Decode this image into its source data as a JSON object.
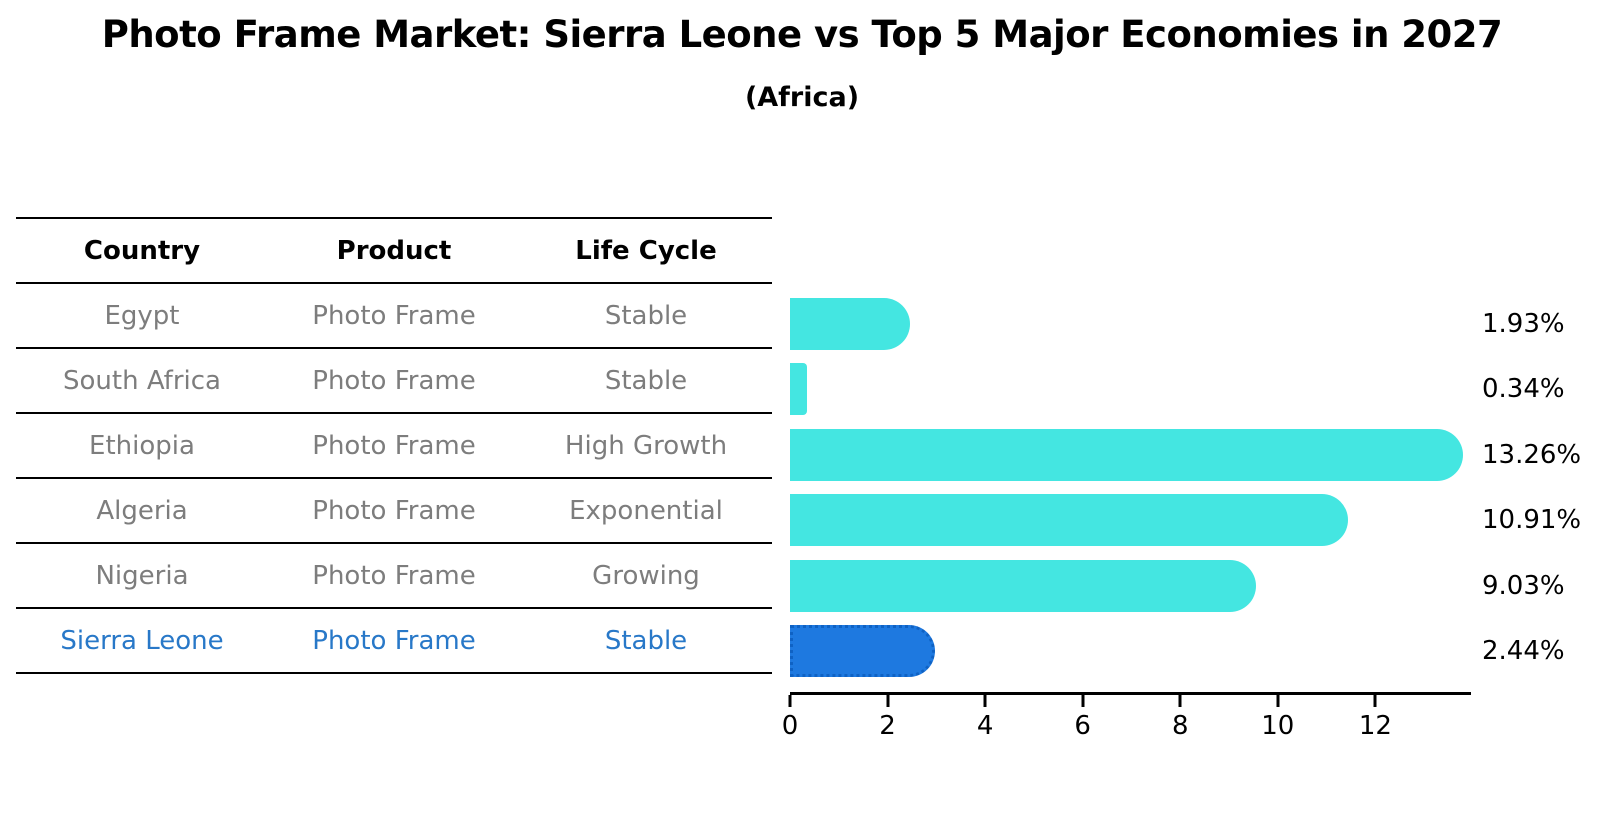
{
  "title": "Photo Frame Market: Sierra Leone vs Top 5 Major Economies in 2027",
  "subtitle": "(Africa)",
  "table": {
    "headers": [
      "Country",
      "Product",
      "Life Cycle"
    ],
    "rows": [
      {
        "country": "Egypt",
        "product": "Photo Frame",
        "life_cycle": "Stable",
        "highlight": false
      },
      {
        "country": "South Africa",
        "product": "Photo Frame",
        "life_cycle": "Stable",
        "highlight": false
      },
      {
        "country": "Ethiopia",
        "product": "Photo Frame",
        "life_cycle": "High Growth",
        "highlight": false
      },
      {
        "country": "Algeria",
        "product": "Photo Frame",
        "life_cycle": "Exponential",
        "highlight": false
      },
      {
        "country": "Nigeria",
        "product": "Photo Frame",
        "life_cycle": "Growing",
        "highlight": false
      },
      {
        "country": "Sierra Leone",
        "product": "Photo Frame",
        "life_cycle": "Stable",
        "highlight": true
      }
    ]
  },
  "chart_data": {
    "type": "bar",
    "orientation": "horizontal",
    "categories": [
      "Egypt",
      "South Africa",
      "Ethiopia",
      "Algeria",
      "Nigeria",
      "Sierra Leone"
    ],
    "values": [
      1.93,
      0.34,
      13.26,
      10.91,
      9.03,
      2.44
    ],
    "value_labels": [
      "1.93%",
      "0.34%",
      "13.26%",
      "10.91%",
      "9.03%",
      "2.44%"
    ],
    "x_ticks": [
      0,
      2,
      4,
      6,
      8,
      10,
      12
    ],
    "x_tick_labels": [
      "0",
      "2",
      "4",
      "6",
      "8",
      "10",
      "12"
    ],
    "xlim": [
      0,
      13.95
    ],
    "xlabel": "",
    "ylabel": "",
    "grid": false,
    "legend": false,
    "bar_color": "#44E6E1",
    "highlight_color": "#1E79E0",
    "highlight_border_color": "#0F62C4",
    "highlight_index": 5
  },
  "colors": {
    "title": "#000000",
    "table_text": "#7d7d7d",
    "highlight_text": "#2878C8",
    "axis": "#000000"
  }
}
